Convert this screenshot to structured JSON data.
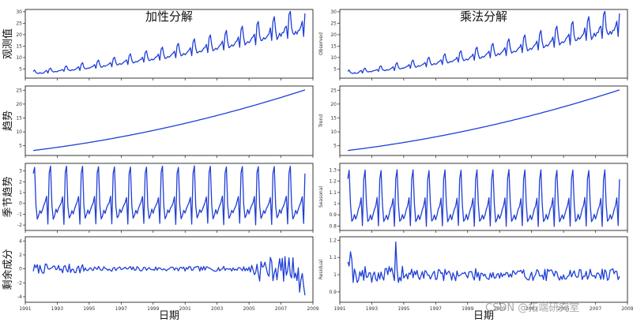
{
  "watermark": "CSDN @拓端研究室",
  "colors": {
    "line": "#1f3fd6",
    "axis": "#222222"
  },
  "chart_data": [
    {
      "type": "line",
      "panel": "additive-observed",
      "title": "加性分解",
      "ylabel": "观测值",
      "xlabel": "",
      "ylim": [
        1,
        31
      ],
      "yticks": [
        5,
        10,
        15,
        20,
        25,
        30
      ],
      "xlim": [
        1991.0,
        2009.0
      ],
      "xticks": [
        1991,
        1993,
        1995,
        1997,
        1999,
        2001,
        2003,
        2005,
        2007,
        2009
      ],
      "show_xticklabels": false,
      "component": "observed",
      "model": "additive"
    },
    {
      "type": "line",
      "panel": "multiplicative-observed",
      "title": "乘法分解",
      "ylabel": "Observed",
      "xlabel": "",
      "ylim": [
        1,
        31
      ],
      "yticks": [
        5,
        10,
        15,
        20,
        25,
        30
      ],
      "xlim": [
        1991.0,
        2009.0
      ],
      "xticks": [
        1991,
        1993,
        1995,
        1997,
        1999,
        2001,
        2003,
        2005,
        2007,
        2009
      ],
      "show_xticklabels": false,
      "component": "observed",
      "model": "multiplicative"
    },
    {
      "type": "line",
      "panel": "additive-trend",
      "title": "",
      "ylabel": "趋势",
      "xlabel": "",
      "ylim": [
        1.5,
        26.5
      ],
      "yticks": [
        5,
        10,
        15,
        20,
        25
      ],
      "xlim": [
        1991.0,
        2009.0
      ],
      "xticks": [
        1991,
        1993,
        1995,
        1997,
        1999,
        2001,
        2003,
        2005,
        2007,
        2009
      ],
      "show_xticklabels": false,
      "component": "trend",
      "model": "additive"
    },
    {
      "type": "line",
      "panel": "multiplicative-trend",
      "title": "",
      "ylabel": "Trend",
      "xlabel": "",
      "ylim": [
        1.5,
        26.5
      ],
      "yticks": [
        5,
        10,
        15,
        20,
        25
      ],
      "xlim": [
        1991.0,
        2009.0
      ],
      "xticks": [
        1991,
        1993,
        1995,
        1997,
        1999,
        2001,
        2003,
        2005,
        2007,
        2009
      ],
      "show_xticklabels": false,
      "component": "trend",
      "model": "multiplicative"
    },
    {
      "type": "line",
      "panel": "additive-seasonal",
      "title": "",
      "ylabel": "季节趋势",
      "xlabel": "",
      "ylim": [
        -2.5,
        3.7
      ],
      "yticks": [
        -2,
        -1,
        0,
        1,
        2,
        3
      ],
      "xlim": [
        1991.0,
        2009.0
      ],
      "xticks": [
        1991,
        1993,
        1995,
        1997,
        1999,
        2001,
        2003,
        2005,
        2007,
        2009
      ],
      "show_xticklabels": false,
      "component": "seasonal",
      "model": "additive"
    },
    {
      "type": "line",
      "panel": "multiplicative-seasonal",
      "title": "",
      "ylabel": "Seasonal",
      "xlabel": "",
      "ylim": [
        0.76,
        1.36
      ],
      "yticks": [
        0.8,
        0.9,
        1.0,
        1.1,
        1.2,
        1.3
      ],
      "xlim": [
        1991.0,
        2009.0
      ],
      "xticks": [
        1991,
        1993,
        1995,
        1997,
        1999,
        2001,
        2003,
        2005,
        2007,
        2009
      ],
      "show_xticklabels": false,
      "component": "seasonal",
      "model": "multiplicative"
    },
    {
      "type": "line",
      "panel": "additive-residual",
      "title": "",
      "ylabel": "剩余成分",
      "xlabel": "日期",
      "ylim": [
        -4.8,
        4.6
      ],
      "yticks": [
        -4,
        -2,
        0,
        2,
        4
      ],
      "xlim": [
        1991.0,
        2009.0
      ],
      "xticks": [
        1991,
        1993,
        1995,
        1997,
        1999,
        2001,
        2003,
        2005,
        2007,
        2009
      ],
      "xticklabels": [
        "1991",
        "1993",
        "1995",
        "1997",
        "1999",
        "2001",
        "2003",
        "2005",
        "2007",
        "2009"
      ],
      "show_xticklabels": true,
      "component": "residual",
      "model": "additive"
    },
    {
      "type": "line",
      "panel": "multiplicative-residual",
      "title": "",
      "ylabel": "Residual",
      "xlabel": "日期",
      "ylim": [
        0.84,
        1.22
      ],
      "yticks": [
        0.9,
        1.0,
        1.1,
        1.2
      ],
      "xlim": [
        1991.0,
        2009.0
      ],
      "xticks": [
        1991,
        1993,
        1995,
        1997,
        1999,
        2001,
        2003,
        2005,
        2007,
        2009
      ],
      "xticklabels": [
        "1991",
        "1993",
        "1995",
        "1997",
        "1999",
        "2001",
        "2003",
        "2005",
        "2007",
        "2009"
      ],
      "show_xticklabels": true,
      "component": "residual",
      "model": "multiplicative"
    }
  ]
}
